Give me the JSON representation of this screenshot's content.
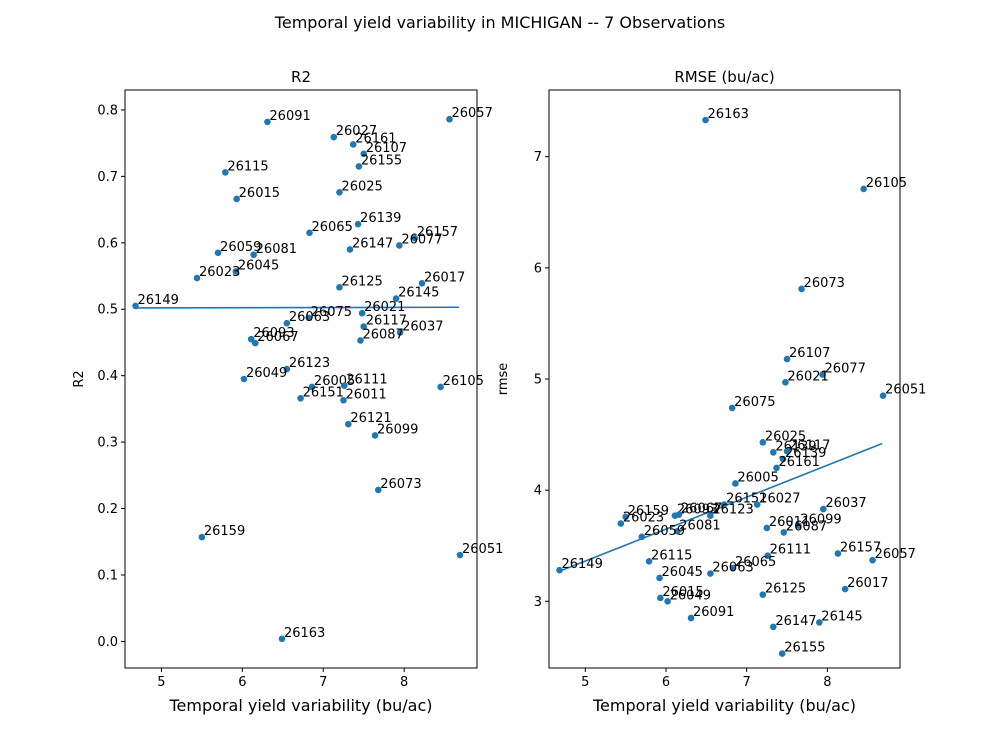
{
  "figure": {
    "title": "Temporal yield variability in MICHIGAN -- 7 Observations"
  },
  "colors": {
    "points": "#1f77b4",
    "fit_line": "#1f77b4",
    "axes": "#000000"
  },
  "chart_data": [
    {
      "type": "scatter",
      "title": "R2",
      "xlabel": "Temporal yield variability (bu/ac)",
      "ylabel": "R2",
      "xlim": [
        4.55,
        8.9
      ],
      "ylim": [
        -0.04,
        0.83
      ],
      "xticks": [
        5,
        6,
        7,
        8
      ],
      "xtick_labels": [
        "5",
        "6",
        "7",
        "8"
      ],
      "yticks": [
        0.0,
        0.1,
        0.2,
        0.3,
        0.4,
        0.5,
        0.6,
        0.7,
        0.8
      ],
      "ytick_labels": [
        "0.0",
        "0.1",
        "0.2",
        "0.3",
        "0.4",
        "0.5",
        "0.6",
        "0.7",
        "0.8"
      ],
      "grid": false,
      "fit_line": {
        "x": [
          4.68,
          8.68
        ],
        "y": [
          0.502,
          0.503
        ]
      },
      "points": [
        {
          "label": "26149",
          "x": 4.68,
          "y": 0.505
        },
        {
          "label": "26091",
          "x": 6.31,
          "y": 0.782
        },
        {
          "label": "26027",
          "x": 7.13,
          "y": 0.759
        },
        {
          "label": "26161",
          "x": 7.37,
          "y": 0.748
        },
        {
          "label": "26107",
          "x": 7.5,
          "y": 0.734
        },
        {
          "label": "26155",
          "x": 7.44,
          "y": 0.715
        },
        {
          "label": "26057",
          "x": 8.56,
          "y": 0.786
        },
        {
          "label": "26115",
          "x": 5.79,
          "y": 0.706
        },
        {
          "label": "26015",
          "x": 5.93,
          "y": 0.666
        },
        {
          "label": "26025",
          "x": 7.2,
          "y": 0.676
        },
        {
          "label": "26139",
          "x": 7.43,
          "y": 0.628
        },
        {
          "label": "26065",
          "x": 6.83,
          "y": 0.615
        },
        {
          "label": "26157",
          "x": 8.13,
          "y": 0.607
        },
        {
          "label": "26077",
          "x": 7.94,
          "y": 0.596
        },
        {
          "label": "26147",
          "x": 7.33,
          "y": 0.59
        },
        {
          "label": "26059",
          "x": 5.7,
          "y": 0.585
        },
        {
          "label": "26081",
          "x": 6.14,
          "y": 0.582
        },
        {
          "label": "26045",
          "x": 5.92,
          "y": 0.557
        },
        {
          "label": "26023",
          "x": 5.44,
          "y": 0.547
        },
        {
          "label": "26017",
          "x": 8.22,
          "y": 0.539
        },
        {
          "label": "26125",
          "x": 7.2,
          "y": 0.533
        },
        {
          "label": "26145",
          "x": 7.9,
          "y": 0.516
        },
        {
          "label": "26075",
          "x": 6.82,
          "y": 0.487
        },
        {
          "label": "26021",
          "x": 7.48,
          "y": 0.494
        },
        {
          "label": "26063",
          "x": 6.55,
          "y": 0.479
        },
        {
          "label": "26117",
          "x": 7.5,
          "y": 0.474
        },
        {
          "label": "26037",
          "x": 7.95,
          "y": 0.465
        },
        {
          "label": "26093",
          "x": 6.11,
          "y": 0.455
        },
        {
          "label": "26067",
          "x": 6.16,
          "y": 0.449
        },
        {
          "label": "26087",
          "x": 7.46,
          "y": 0.453
        },
        {
          "label": "26123",
          "x": 6.55,
          "y": 0.41
        },
        {
          "label": "26049",
          "x": 6.02,
          "y": 0.395
        },
        {
          "label": "26005",
          "x": 6.86,
          "y": 0.383
        },
        {
          "label": "26111",
          "x": 7.26,
          "y": 0.385
        },
        {
          "label": "26151",
          "x": 6.72,
          "y": 0.366
        },
        {
          "label": "26011",
          "x": 7.25,
          "y": 0.363
        },
        {
          "label": "26105",
          "x": 8.45,
          "y": 0.383
        },
        {
          "label": "26121",
          "x": 7.31,
          "y": 0.327
        },
        {
          "label": "26099",
          "x": 7.64,
          "y": 0.31
        },
        {
          "label": "26073",
          "x": 7.68,
          "y": 0.228
        },
        {
          "label": "26159",
          "x": 5.5,
          "y": 0.157
        },
        {
          "label": "26051",
          "x": 8.69,
          "y": 0.13
        },
        {
          "label": "26163",
          "x": 6.49,
          "y": 0.004
        }
      ]
    },
    {
      "type": "scatter",
      "title": "RMSE (bu/ac)",
      "xlabel": "Temporal yield variability (bu/ac)",
      "ylabel": "rmse",
      "xlim": [
        4.55,
        8.9
      ],
      "ylim": [
        2.4,
        7.6
      ],
      "xticks": [
        5,
        6,
        7,
        8
      ],
      "xtick_labels": [
        "5",
        "6",
        "7",
        "8"
      ],
      "yticks": [
        3,
        4,
        5,
        6,
        7
      ],
      "ytick_labels": [
        "3",
        "4",
        "5",
        "6",
        "7"
      ],
      "grid": false,
      "fit_line": {
        "x": [
          4.68,
          8.68
        ],
        "y": [
          3.27,
          4.42
        ]
      },
      "points": [
        {
          "label": "26163",
          "x": 6.49,
          "y": 7.33
        },
        {
          "label": "26105",
          "x": 8.45,
          "y": 6.71
        },
        {
          "label": "26073",
          "x": 7.68,
          "y": 5.81
        },
        {
          "label": "26107",
          "x": 7.5,
          "y": 5.18
        },
        {
          "label": "26077",
          "x": 7.94,
          "y": 5.04
        },
        {
          "label": "26021",
          "x": 7.48,
          "y": 4.97
        },
        {
          "label": "26051",
          "x": 8.69,
          "y": 4.85
        },
        {
          "label": "26075",
          "x": 6.82,
          "y": 4.74
        },
        {
          "label": "26025",
          "x": 7.2,
          "y": 4.43
        },
        {
          "label": "26139",
          "x": 7.33,
          "y": 4.34
        },
        {
          "label": "26117",
          "x": 7.5,
          "y": 4.35
        },
        {
          "label": "26139",
          "x": 7.45,
          "y": 4.28
        },
        {
          "label": "26161",
          "x": 7.37,
          "y": 4.2
        },
        {
          "label": "26005",
          "x": 6.86,
          "y": 4.06
        },
        {
          "label": "26151",
          "x": 6.72,
          "y": 3.87
        },
        {
          "label": "26027",
          "x": 7.13,
          "y": 3.87
        },
        {
          "label": "26037",
          "x": 7.95,
          "y": 3.83
        },
        {
          "label": "26159",
          "x": 5.5,
          "y": 3.76
        },
        {
          "label": "26093",
          "x": 6.11,
          "y": 3.77
        },
        {
          "label": "26067",
          "x": 6.16,
          "y": 3.78
        },
        {
          "label": "26123",
          "x": 6.55,
          "y": 3.77
        },
        {
          "label": "26023",
          "x": 5.44,
          "y": 3.7
        },
        {
          "label": "26099",
          "x": 7.64,
          "y": 3.68
        },
        {
          "label": "26011",
          "x": 7.25,
          "y": 3.66
        },
        {
          "label": "26087",
          "x": 7.46,
          "y": 3.62
        },
        {
          "label": "26081",
          "x": 6.14,
          "y": 3.63
        },
        {
          "label": "26059",
          "x": 5.7,
          "y": 3.58
        },
        {
          "label": "26157",
          "x": 8.13,
          "y": 3.43
        },
        {
          "label": "26111",
          "x": 7.26,
          "y": 3.41
        },
        {
          "label": "26057",
          "x": 8.56,
          "y": 3.37
        },
        {
          "label": "26115",
          "x": 5.79,
          "y": 3.36
        },
        {
          "label": "26065",
          "x": 6.83,
          "y": 3.3
        },
        {
          "label": "26149",
          "x": 4.68,
          "y": 3.28
        },
        {
          "label": "26063",
          "x": 6.55,
          "y": 3.25
        },
        {
          "label": "26045",
          "x": 5.92,
          "y": 3.21
        },
        {
          "label": "26017",
          "x": 8.22,
          "y": 3.11
        },
        {
          "label": "26125",
          "x": 7.2,
          "y": 3.06
        },
        {
          "label": "26015",
          "x": 5.93,
          "y": 3.03
        },
        {
          "label": "26049",
          "x": 6.02,
          "y": 3.0
        },
        {
          "label": "26091",
          "x": 6.31,
          "y": 2.85
        },
        {
          "label": "26145",
          "x": 7.9,
          "y": 2.81
        },
        {
          "label": "26147",
          "x": 7.33,
          "y": 2.77
        },
        {
          "label": "26155",
          "x": 7.44,
          "y": 2.53
        }
      ]
    }
  ]
}
